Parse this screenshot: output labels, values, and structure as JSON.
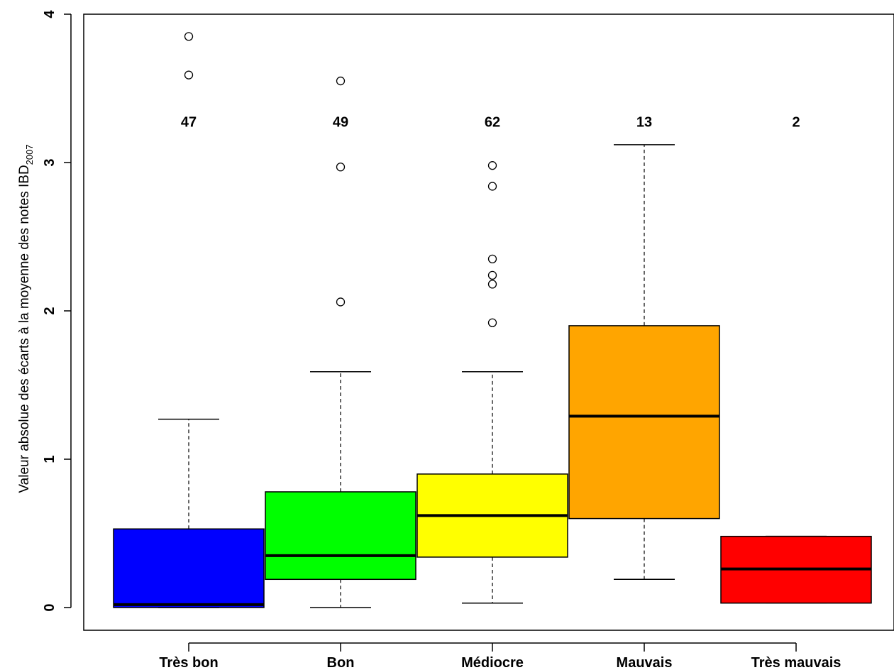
{
  "chart_data": {
    "type": "boxplot",
    "ylabel": "Valeur absolue des écarts à la moyenne des notes IBD",
    "ylabel_subscript": "2007",
    "ylim": [
      -0.15,
      4.0
    ],
    "yticks": [
      0,
      1,
      2,
      3,
      4
    ],
    "yticks_text": [
      "0",
      "1",
      "2",
      "3",
      "4"
    ],
    "count_level": 3.28,
    "categories": [
      {
        "label": "Très bon",
        "count": "47",
        "color": "#0000ff",
        "whisker_low": 0.0,
        "q1": 0.0,
        "median": 0.02,
        "q3": 0.53,
        "whisker_high": 1.27,
        "outliers": [
          3.59,
          3.85
        ]
      },
      {
        "label": "Bon",
        "count": "49",
        "color": "#00ff00",
        "whisker_low": 0.0,
        "q1": 0.19,
        "median": 0.35,
        "q3": 0.78,
        "whisker_high": 1.59,
        "outliers": [
          2.06,
          2.97,
          3.55
        ]
      },
      {
        "label": "Médiocre",
        "count": "62",
        "color": "#ffff00",
        "whisker_low": 0.03,
        "q1": 0.34,
        "median": 0.62,
        "q3": 0.9,
        "whisker_high": 1.59,
        "outliers": [
          1.92,
          2.18,
          2.24,
          2.35,
          2.84,
          2.98
        ]
      },
      {
        "label": "Mauvais",
        "count": "13",
        "color": "#ffa500",
        "whisker_low": 0.19,
        "q1": 0.6,
        "median": 1.29,
        "q3": 1.9,
        "whisker_high": 3.12,
        "outliers": []
      },
      {
        "label": "Très mauvais",
        "count": "2",
        "color": "#ff0000",
        "whisker_low": 0.03,
        "q1": 0.03,
        "median": 0.26,
        "q3": 0.48,
        "whisker_high": 0.48,
        "outliers": []
      }
    ]
  }
}
